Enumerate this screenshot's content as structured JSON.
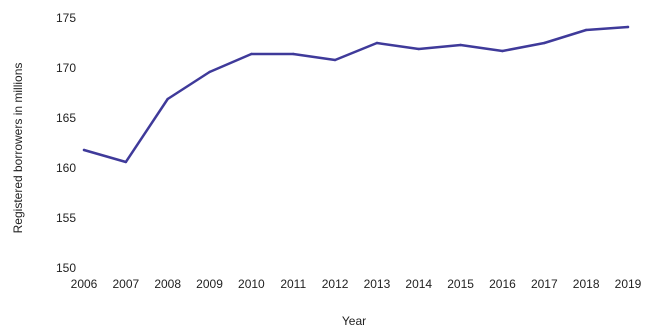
{
  "chart_data": {
    "type": "line",
    "title": "",
    "xlabel": "Year",
    "ylabel": "Registered borrowers in millions",
    "x": [
      "2006",
      "2007",
      "2008",
      "2009",
      "2010",
      "2011",
      "2012",
      "2013",
      "2014",
      "2015",
      "2016",
      "2017",
      "2018",
      "2019"
    ],
    "series": [
      {
        "values": [
          161.8,
          160.6,
          166.9,
          169.6,
          171.4,
          171.4,
          170.8,
          172.5,
          171.9,
          172.3,
          171.7,
          172.5,
          173.8,
          174.1
        ]
      }
    ],
    "ylim": [
      150,
      175
    ],
    "yticks": [
      "150",
      "155",
      "160",
      "165",
      "170",
      "175"
    ],
    "grid": false,
    "legend": "none",
    "colors": {
      "line": "#3f3a9a",
      "text": "#222222",
      "background": "#ffffff"
    }
  }
}
